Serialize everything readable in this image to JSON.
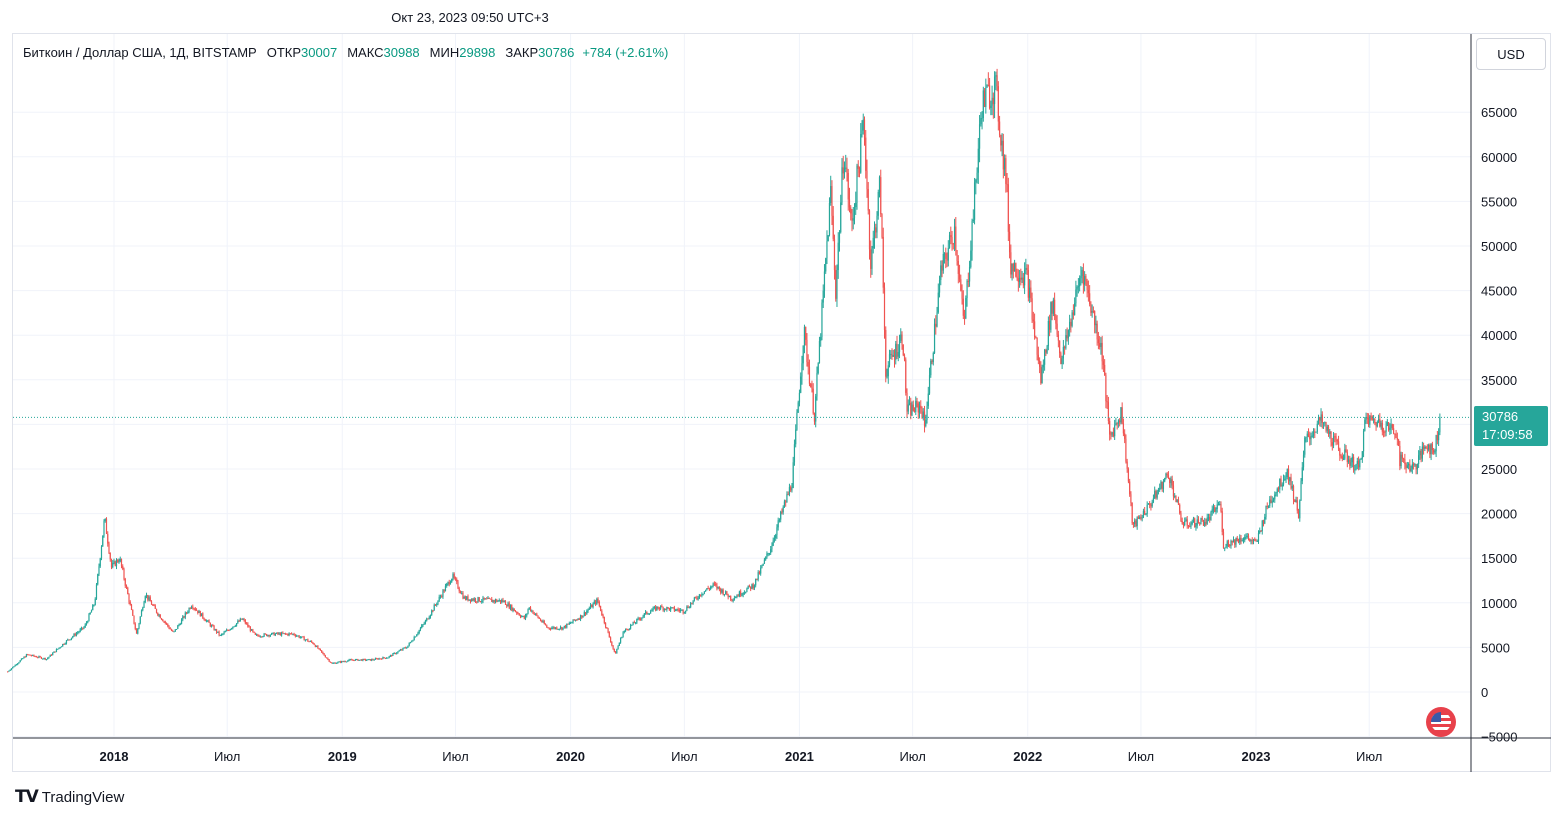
{
  "header": {
    "timestamp": "Окт 23, 2023 09:50 UTC+3"
  },
  "legend": {
    "symbol": "Биткоин / Доллар США, 1Д, BITSTAMP",
    "open_label": "ОТКР",
    "open_value": "30007",
    "high_label": "МАКС",
    "high_value": "30988",
    "low_label": "МИН",
    "low_value": "29898",
    "close_label": "ЗАКР",
    "close_value": "30786",
    "change": "+784 (+2.61%)"
  },
  "currency_button": "USD",
  "last_price": {
    "value": "30786",
    "countdown": "17:09:58"
  },
  "brand": "TradingView",
  "colors": {
    "up": "#26a69a",
    "down": "#ef5350",
    "grid": "#f0f3fa",
    "price_line": "#26a69a"
  },
  "chart_data": {
    "type": "candlestick",
    "title": "Биткоин / Доллар США, 1Д, BITSTAMP",
    "x_ticks": [
      {
        "label": "2018",
        "date": "2018-01-01",
        "bold": true
      },
      {
        "label": "Июл",
        "date": "2018-07-01",
        "bold": false
      },
      {
        "label": "2019",
        "date": "2019-01-01",
        "bold": true
      },
      {
        "label": "Июл",
        "date": "2019-07-01",
        "bold": false
      },
      {
        "label": "2020",
        "date": "2020-01-01",
        "bold": true
      },
      {
        "label": "Июл",
        "date": "2020-07-01",
        "bold": false
      },
      {
        "label": "2021",
        "date": "2021-01-01",
        "bold": true
      },
      {
        "label": "Июл",
        "date": "2021-07-01",
        "bold": false
      },
      {
        "label": "2022",
        "date": "2022-01-01",
        "bold": true
      },
      {
        "label": "Июл",
        "date": "2022-07-01",
        "bold": false
      },
      {
        "label": "2023",
        "date": "2023-01-01",
        "bold": true
      },
      {
        "label": "Июл",
        "date": "2023-07-01",
        "bold": false
      }
    ],
    "y_ticks": [
      -5000,
      0,
      5000,
      10000,
      15000,
      20000,
      25000,
      30000,
      35000,
      40000,
      45000,
      50000,
      55000,
      60000,
      65000
    ],
    "y_tick_labels": [
      "−5000",
      "0",
      "5000",
      "10000",
      "15000",
      "20000",
      "25000",
      "30000",
      "35000",
      "40000",
      "45000",
      "50000",
      "55000",
      "60000",
      "65000"
    ],
    "ylim": [
      -5000,
      70000
    ],
    "last_close": 30786,
    "price_path": [
      [
        "2017-07-15",
        2300
      ],
      [
        "2017-08-15",
        4200
      ],
      [
        "2017-09-15",
        3700
      ],
      [
        "2017-10-15",
        5600
      ],
      [
        "2017-11-15",
        7300
      ],
      [
        "2017-12-01",
        10000
      ],
      [
        "2017-12-17",
        19500
      ],
      [
        "2017-12-28",
        14000
      ],
      [
        "2018-01-10",
        15000
      ],
      [
        "2018-02-06",
        6500
      ],
      [
        "2018-02-20",
        11000
      ],
      [
        "2018-03-10",
        9000
      ],
      [
        "2018-04-06",
        6600
      ],
      [
        "2018-05-05",
        9800
      ],
      [
        "2018-06-20",
        6300
      ],
      [
        "2018-07-25",
        8200
      ],
      [
        "2018-08-15",
        6300
      ],
      [
        "2018-09-15",
        6500
      ],
      [
        "2018-10-15",
        6500
      ],
      [
        "2018-11-15",
        5500
      ],
      [
        "2018-12-15",
        3200
      ],
      [
        "2019-01-15",
        3600
      ],
      [
        "2019-02-15",
        3600
      ],
      [
        "2019-03-15",
        3900
      ],
      [
        "2019-04-15",
        5100
      ],
      [
        "2019-05-15",
        8000
      ],
      [
        "2019-06-26",
        13000
      ],
      [
        "2019-07-15",
        10500
      ],
      [
        "2019-08-15",
        10300
      ],
      [
        "2019-09-15",
        10200
      ],
      [
        "2019-10-20",
        8200
      ],
      [
        "2019-10-26",
        9500
      ],
      [
        "2019-11-25",
        7200
      ],
      [
        "2019-12-20",
        7200
      ],
      [
        "2020-01-20",
        8600
      ],
      [
        "2020-02-13",
        10300
      ],
      [
        "2020-03-12",
        4200
      ],
      [
        "2020-03-25",
        6700
      ],
      [
        "2020-04-30",
        8800
      ],
      [
        "2020-05-20",
        9500
      ],
      [
        "2020-06-30",
        9100
      ],
      [
        "2020-07-28",
        11100
      ],
      [
        "2020-08-17",
        12000
      ],
      [
        "2020-09-15",
        10500
      ],
      [
        "2020-10-20",
        12000
      ],
      [
        "2020-11-15",
        16000
      ],
      [
        "2020-12-01",
        19500
      ],
      [
        "2020-12-20",
        23500
      ],
      [
        "2021-01-08",
        40500
      ],
      [
        "2021-01-25",
        31000
      ],
      [
        "2021-02-20",
        56000
      ],
      [
        "2021-02-28",
        45000
      ],
      [
        "2021-03-13",
        61000
      ],
      [
        "2021-03-25",
        52000
      ],
      [
        "2021-04-14",
        64000
      ],
      [
        "2021-04-25",
        48000
      ],
      [
        "2021-05-10",
        57000
      ],
      [
        "2021-05-19",
        36000
      ],
      [
        "2021-06-15",
        40000
      ],
      [
        "2021-06-22",
        31500
      ],
      [
        "2021-07-15",
        32000
      ],
      [
        "2021-07-20",
        29800
      ],
      [
        "2021-08-15",
        47000
      ],
      [
        "2021-09-06",
        52000
      ],
      [
        "2021-09-21",
        41000
      ],
      [
        "2021-10-20",
        66000
      ],
      [
        "2021-11-10",
        68000
      ],
      [
        "2021-11-28",
        57000
      ],
      [
        "2021-12-04",
        48000
      ],
      [
        "2021-12-31",
        46500
      ],
      [
        "2022-01-22",
        35000
      ],
      [
        "2022-02-10",
        44000
      ],
      [
        "2022-02-24",
        37000
      ],
      [
        "2022-03-29",
        47500
      ],
      [
        "2022-04-30",
        38000
      ],
      [
        "2022-05-12",
        28500
      ],
      [
        "2022-05-31",
        31500
      ],
      [
        "2022-06-18",
        18500
      ],
      [
        "2022-07-15",
        21000
      ],
      [
        "2022-08-14",
        24500
      ],
      [
        "2022-09-06",
        18800
      ],
      [
        "2022-10-15",
        19200
      ],
      [
        "2022-11-05",
        21300
      ],
      [
        "2022-11-09",
        16500
      ],
      [
        "2022-12-15",
        17400
      ],
      [
        "2023-01-01",
        16600
      ],
      [
        "2023-01-20",
        21000
      ],
      [
        "2023-02-20",
        24800
      ],
      [
        "2023-03-10",
        20000
      ],
      [
        "2023-03-20",
        28000
      ],
      [
        "2023-04-14",
        30400
      ],
      [
        "2023-05-15",
        27000
      ],
      [
        "2023-06-15",
        25000
      ],
      [
        "2023-06-25",
        30500
      ],
      [
        "2023-07-15",
        30300
      ],
      [
        "2023-08-16",
        29000
      ],
      [
        "2023-08-18",
        26000
      ],
      [
        "2023-09-11",
        25100
      ],
      [
        "2023-10-01",
        27900
      ],
      [
        "2023-10-12",
        26800
      ],
      [
        "2023-10-23",
        30786
      ]
    ]
  }
}
